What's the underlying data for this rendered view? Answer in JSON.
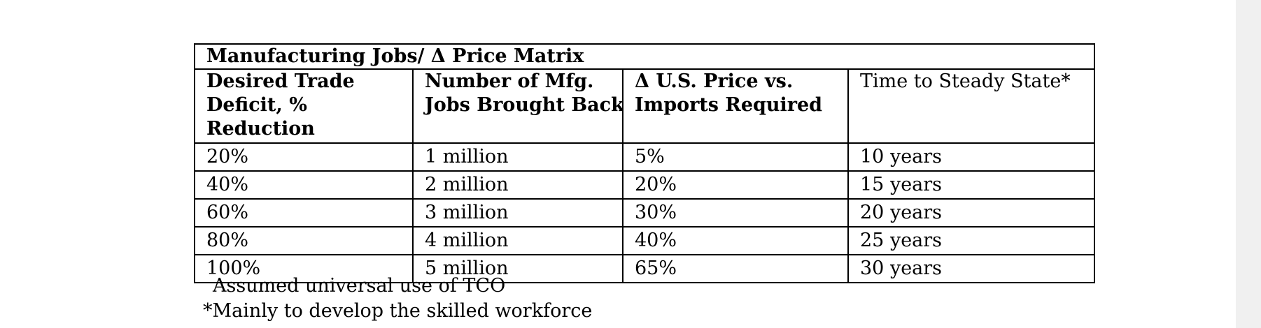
{
  "table": {
    "title": "Manufacturing Jobs/ Δ Price Matrix",
    "headers": [
      {
        "lines": [
          "Desired Trade",
          "Deficit, %",
          "Reduction"
        ],
        "bold": true
      },
      {
        "lines": [
          "Number of Mfg.",
          "Jobs Brought Back"
        ],
        "bold": true
      },
      {
        "lines": [
          "Δ U.S. Price vs.",
          "Imports Required"
        ],
        "bold": true
      },
      {
        "lines": [
          "Time to Steady State*"
        ],
        "bold": false
      }
    ],
    "rows": [
      [
        "20%",
        "1 million",
        "5%",
        "10 years"
      ],
      [
        "40%",
        "2 million",
        "20%",
        "15 years"
      ],
      [
        "60%",
        "3 million",
        "30%",
        "20 years"
      ],
      [
        "80%",
        "4 million",
        "40%",
        "25 years"
      ],
      [
        "100%",
        "5 million",
        "65%",
        "30 years"
      ]
    ]
  },
  "notes": {
    "line1": "Assumed universal use of TCO",
    "line2": "*Mainly to develop the skilled workforce"
  }
}
